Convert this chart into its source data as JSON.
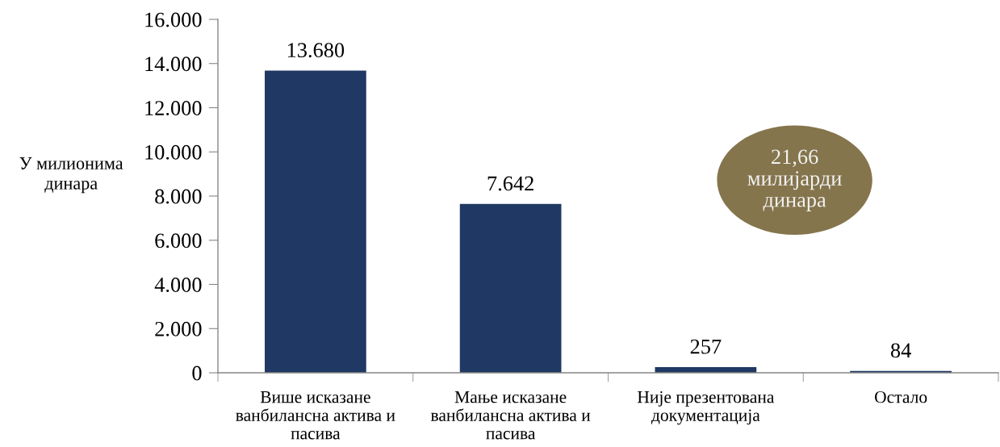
{
  "chart_data": {
    "type": "bar",
    "ylabel": "У милионима\nдинара",
    "categories": [
      "Више исказане\nванбилансна актива и\nпасива",
      "Мање исказане\nванбилансна актива и\nпасива",
      "Није презентована\nдокументација",
      "Остало"
    ],
    "values": [
      13680,
      7642,
      257,
      84
    ],
    "color": "#1f3864",
    "value_labels": [
      "13.680",
      "7.642",
      "257",
      "84"
    ],
    "ylim": [
      0,
      16000
    ],
    "yticks": [
      0,
      {
        "value": 2000,
        "label": "2.000"
      },
      {
        "value": 4000,
        "label": "4.000"
      },
      {
        "value": 6000,
        "label": "6.000"
      },
      {
        "value": 8000,
        "label": "8.000"
      },
      {
        "value": 10000,
        "label": "10.000"
      },
      {
        "value": 12000,
        "label": "12.000"
      },
      {
        "value": 14000,
        "label": "14.000"
      },
      {
        "value": 16000,
        "label": "16.000"
      }
    ],
    "annotations": [
      "21,66\nмилијарди\nдинара"
    ]
  }
}
